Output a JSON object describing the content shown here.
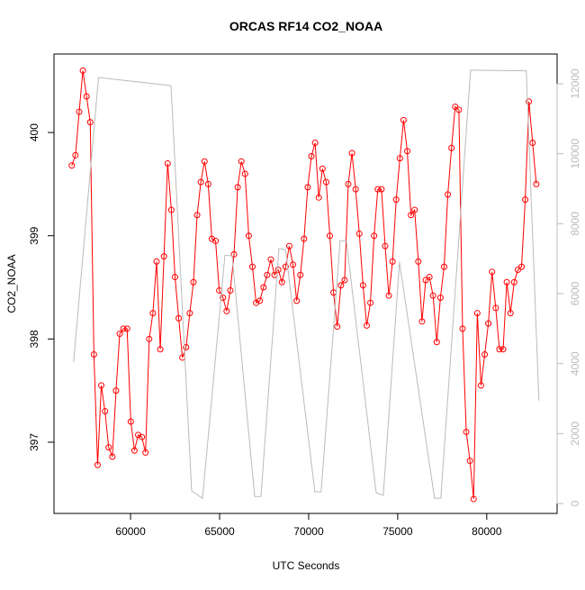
{
  "chart_data": {
    "type": "line",
    "title": "ORCAS RF14 CO2_NOAA",
    "x_label": "UTC Seconds",
    "y_label": "CO2_NOAA",
    "xlim": [
      55700,
      83950
    ],
    "xticks": [
      60000,
      65000,
      70000,
      75000,
      80000
    ],
    "ylim": [
      396.31,
      400.76
    ],
    "yticks": [
      397,
      398,
      399,
      400
    ],
    "y2lim": [
      -283,
      12850
    ],
    "y2ticks": [
      0,
      2000,
      4000,
      6000,
      8000,
      10000,
      12000
    ],
    "y2_color": "#bbbbbb",
    "series": [
      {
        "color": "#ff0000",
        "markers": true,
        "x": [
          56700,
          56907,
          57114,
          57321,
          57528,
          57735,
          57942,
          58149,
          58356,
          58563,
          58770,
          58977,
          59184,
          59391,
          59598,
          59805,
          60012,
          60219,
          60426,
          60633,
          60840,
          61047,
          61254,
          61461,
          61668,
          61875,
          62082,
          62289,
          62496,
          62703,
          62910,
          63117,
          63324,
          63531,
          63738,
          63945,
          64152,
          64359,
          64566,
          64773,
          64980,
          65187,
          65394,
          65601,
          65808,
          66015,
          66222,
          66429,
          66636,
          66843,
          67050,
          67257,
          67464,
          67671,
          67878,
          68085,
          68292,
          68499,
          68706,
          68913,
          69120,
          69327,
          69534,
          69741,
          69948,
          70155,
          70362,
          70569,
          70776,
          70983,
          71190,
          71397,
          71604,
          71811,
          72018,
          72225,
          72432,
          72639,
          72846,
          73053,
          73260,
          73467,
          73674,
          73881,
          74088,
          74295,
          74502,
          74709,
          74916,
          75123,
          75330,
          75537,
          75744,
          75951,
          76158,
          76365,
          76572,
          76779,
          76986,
          77193,
          77400,
          77607,
          77814,
          78021,
          78228,
          78435,
          78642,
          78849,
          79056,
          79263,
          79470,
          79677,
          79884,
          80091,
          80298,
          80505,
          80712,
          80919,
          81126,
          81333,
          81540,
          81747,
          81954,
          82161,
          82368,
          82575,
          82782
        ],
        "values": [
          399.68,
          399.78,
          400.2,
          400.6,
          400.35,
          400.1,
          397.85,
          396.78,
          397.55,
          397.3,
          396.95,
          396.86,
          397.5,
          398.05,
          398.1,
          398.1,
          397.2,
          396.92,
          397.07,
          397.05,
          396.9,
          398.0,
          398.25,
          398.75,
          397.9,
          398.8,
          399.7,
          399.25,
          398.6,
          398.2,
          397.82,
          397.92,
          398.25,
          398.55,
          399.2,
          399.52,
          399.72,
          399.5,
          398.97,
          398.95,
          398.47,
          398.4,
          398.27,
          398.47,
          398.82,
          399.47,
          399.72,
          399.6,
          399.0,
          398.7,
          398.35,
          398.37,
          398.5,
          398.62,
          398.77,
          398.62,
          398.67,
          398.55,
          398.7,
          398.9,
          398.72,
          398.37,
          398.62,
          398.97,
          399.47,
          399.77,
          399.9,
          399.37,
          399.65,
          399.52,
          399.0,
          398.45,
          398.12,
          398.52,
          398.57,
          399.5,
          399.8,
          399.45,
          399.02,
          398.52,
          398.13,
          398.35,
          399.0,
          399.45,
          399.45,
          398.9,
          398.42,
          398.75,
          399.35,
          399.75,
          400.12,
          399.82,
          399.2,
          399.25,
          398.75,
          398.17,
          398.57,
          398.6,
          398.42,
          397.97,
          398.4,
          398.7,
          399.4,
          399.85,
          400.25,
          400.22,
          398.1,
          397.1,
          396.82,
          396.45,
          398.25,
          397.55,
          397.85,
          398.15,
          398.65,
          398.3,
          397.9,
          397.9,
          398.55,
          398.25,
          398.55,
          398.67,
          398.7,
          399.35,
          400.3,
          399.9,
          399.5
        ]
      },
      {
        "color": "#bbbbbb",
        "axis": "y2",
        "markers": false,
        "x": [
          56800,
          58200,
          62270,
          63430,
          64040,
          65300,
          65700,
          66970,
          67320,
          68330,
          68700,
          70350,
          70700,
          71770,
          72120,
          73790,
          74190,
          75100,
          77070,
          77420,
          79090,
          82220,
          82930
        ],
        "values": [
          4043,
          12180,
          11950,
          360,
          150,
          7100,
          7080,
          200,
          200,
          7290,
          7260,
          335,
          335,
          7520,
          7500,
          310,
          230,
          6900,
          150,
          150,
          12390,
          12370,
          2940
        ]
      }
    ]
  }
}
